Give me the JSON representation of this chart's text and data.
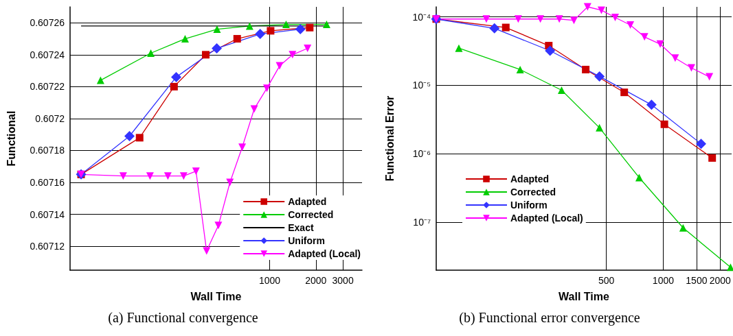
{
  "chart_data": [
    {
      "type": "line",
      "xlabel": "Wall Time",
      "ylabel": "Functional",
      "log": "x",
      "grid": true,
      "legend": "bottom right",
      "annotations": [
        "(a)  Functional convergence"
      ],
      "xlim": [
        50,
        4000
      ],
      "xticks": [
        1000,
        2000,
        3000
      ],
      "ylim": [
        0.607105,
        0.60727
      ],
      "yticks": [
        0.60712,
        0.60714,
        0.60716,
        0.60718,
        0.6072,
        0.60722,
        0.60724,
        0.60726
      ],
      "series": [
        {
          "name": "Adapted",
          "color": "#cc0000",
          "marker": "square",
          "x": [
            59,
            142,
            238,
            383,
            614,
            1014,
            1824
          ],
          "values": [
            0.607165,
            0.607188,
            0.60722,
            0.60724,
            0.60725,
            0.607255,
            0.607257
          ]
        },
        {
          "name": "Corrected",
          "color": "#00cc00",
          "marker": "triangle",
          "x": [
            79,
            168,
            281,
            454,
            740,
            1279,
            2350
          ],
          "values": [
            0.607224,
            0.607241,
            0.60725,
            0.607256,
            0.607258,
            0.607259,
            0.607259
          ]
        },
        {
          "name": "Exact",
          "color": "#000000",
          "marker": "none",
          "x": [
            59,
            2350
          ],
          "values": [
            0.607258,
            0.607258
          ]
        },
        {
          "name": "Uniform",
          "color": "#3333ff",
          "marker": "diamond",
          "x": [
            59,
            122,
            246,
            452,
            867,
            1585
          ],
          "values": [
            0.607165,
            0.607189,
            0.607226,
            0.607244,
            0.607253,
            0.607256
          ]
        },
        {
          "name": "Adapted (Local)",
          "color": "#ff00ff",
          "marker": "triangle-down",
          "x": [
            59,
            111,
            166,
            217,
            275,
            331,
            388,
            463,
            551,
            662,
            793,
            959,
            1161,
            1409,
            1766
          ],
          "values": [
            0.607165,
            0.607164,
            0.607164,
            0.607164,
            0.607164,
            0.607167,
            0.607117,
            0.607133,
            0.60716,
            0.607182,
            0.607206,
            0.607219,
            0.607233,
            0.60724,
            0.607244
          ]
        }
      ]
    },
    {
      "type": "line",
      "xlabel": "Wall Time",
      "ylabel": "Functional Error",
      "log": "xy",
      "grid": true,
      "legend": "bottom left",
      "annotations": [
        "(b)  Functional error convergence"
      ],
      "xlim": [
        63,
        2300
      ],
      "xticks": [
        500,
        1000,
        1500,
        2000
      ],
      "ylim": [
        2e-08,
        0.00014
      ],
      "yticks": [
        {
          "value": 1e-07,
          "label": "10⁻⁷"
        },
        {
          "value": 1e-06,
          "label": "10⁻⁶"
        },
        {
          "value": 1e-05,
          "label": "10⁻⁵"
        },
        {
          "value": 0.0001,
          "label": "10⁻⁴"
        }
      ],
      "series": [
        {
          "name": "Adapted",
          "color": "#cc0000",
          "marker": "square",
          "x": [
            63,
            147,
            248,
            389,
            622,
            1014,
            1815
          ],
          "values": [
            9.3e-05,
            7e-05,
            3.8e-05,
            1.7e-05,
            7.9e-06,
            2.7e-06,
            8.7e-07
          ]
        },
        {
          "name": "Corrected",
          "color": "#00cc00",
          "marker": "triangle",
          "x": [
            83,
            175,
            290,
            460,
            746,
            1274,
            2270
          ],
          "values": [
            3.5e-05,
            1.7e-05,
            8.5e-06,
            2.4e-06,
            4.5e-07,
            8.3e-08,
            2.2e-08
          ]
        },
        {
          "name": "Uniform",
          "color": "#3333ff",
          "marker": "diamond",
          "x": [
            63,
            128,
            252,
            460,
            867,
            1585
          ],
          "values": [
            9.3e-05,
            6.8e-05,
            3.2e-05,
            1.35e-05,
            5.2e-06,
            1.4e-06
          ]
        },
        {
          "name": "Adapted (Local)",
          "color": "#ff00ff",
          "marker": "triangle-down",
          "x": [
            63,
            116,
            171,
            224,
            282,
            337,
            398,
            471,
            557,
            670,
            796,
            964,
            1157,
            1409,
            1754
          ],
          "values": [
            9.3e-05,
            9.3e-05,
            9.3e-05,
            9.3e-05,
            9.3e-05,
            8.9e-05,
            0.00014,
            0.000125,
            9.8e-05,
            7.6e-05,
            5.1e-05,
            4e-05,
            2.5e-05,
            1.8e-05,
            1.33e-05
          ]
        }
      ]
    }
  ]
}
